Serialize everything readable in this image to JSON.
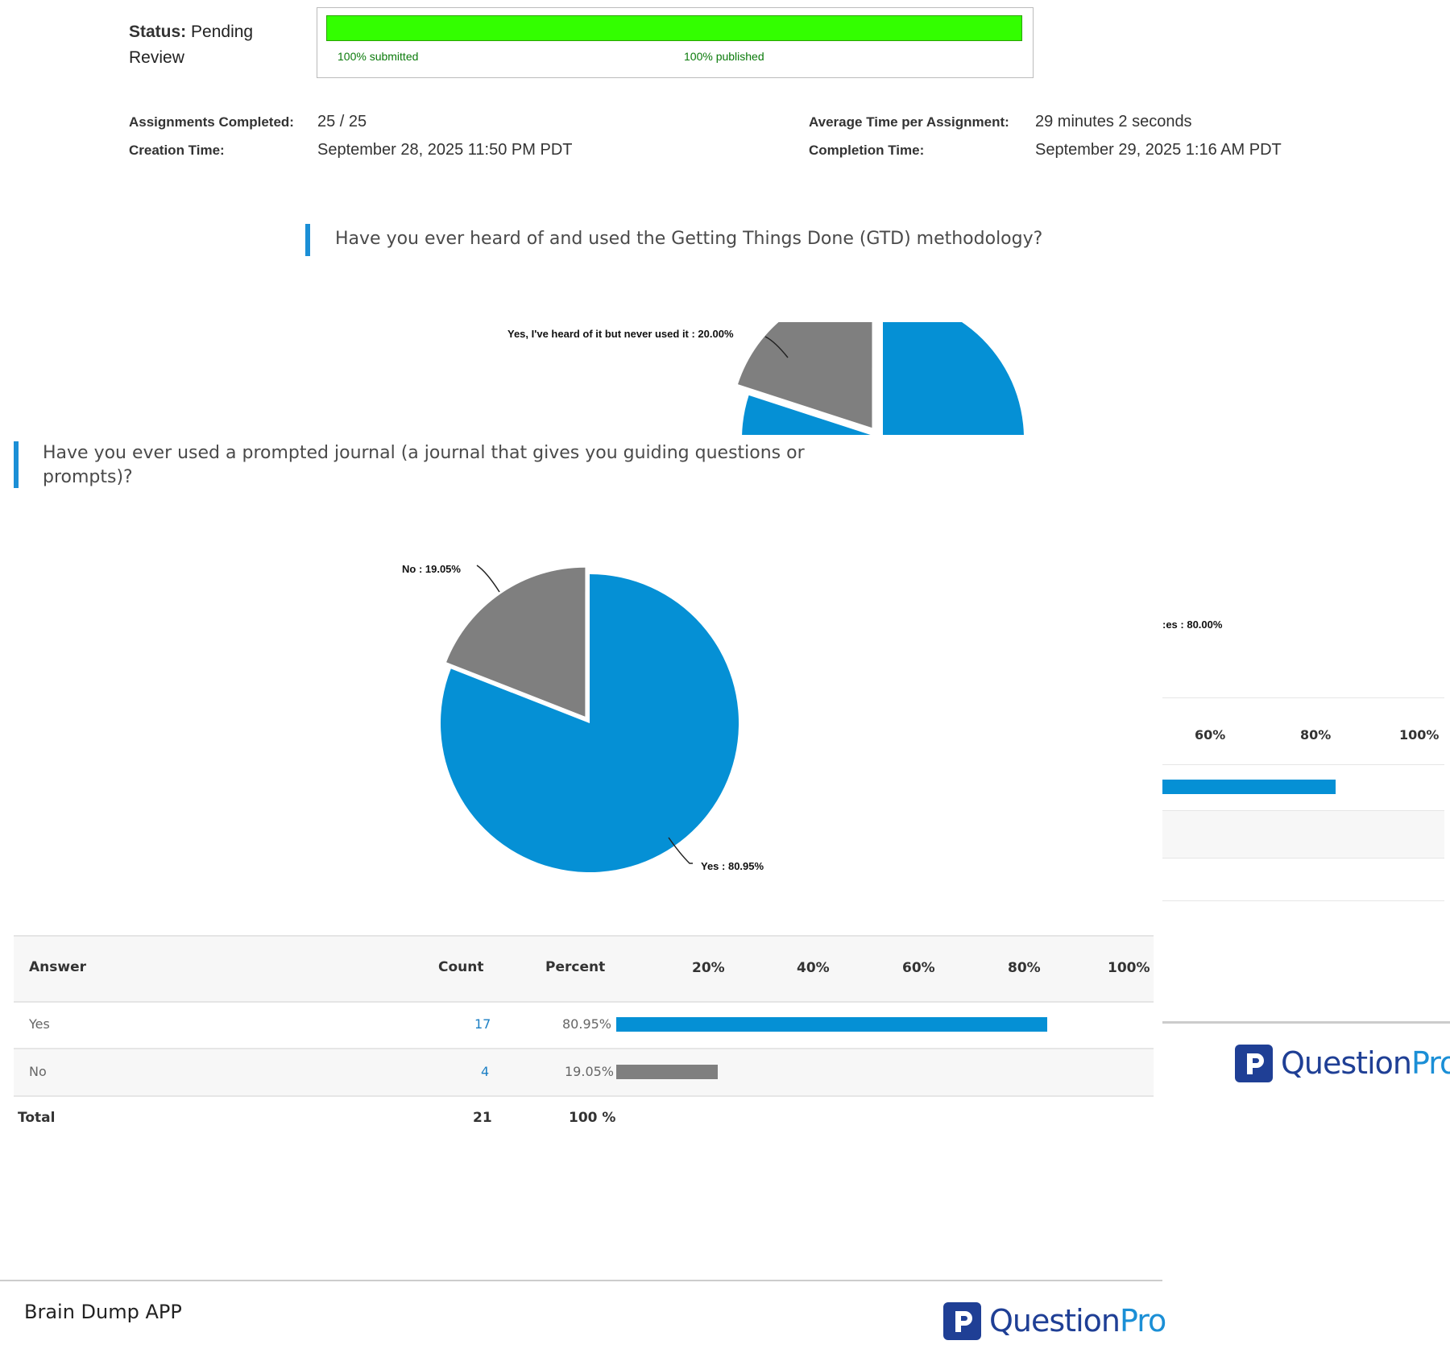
{
  "status": {
    "key": "Status:",
    "value_line1": "Pending",
    "value_line2": "Review"
  },
  "progress": {
    "submitted": "100% submitted",
    "published": "100% published",
    "submitted_fraction": 1.0,
    "published_fraction": 1.0,
    "color": "#33ff00"
  },
  "meta": {
    "assignments_completed_label": "Assignments Completed:",
    "assignments_completed_value": "25 / 25",
    "creation_time_label": "Creation Time:",
    "creation_time_value": "September 28, 2025 11:50 PM PDT",
    "avg_time_label": "Average Time per Assignment:",
    "avg_time_value": "29 minutes 2 seconds",
    "completion_time_label": "Completion Time:",
    "completion_time_value": "September 29, 2025  1:16 AM PDT"
  },
  "question1": {
    "text": "Have you ever heard of and used the Getting Things Done (GTD) methodology?",
    "slice_label": "Yes, I've heard of it but never used it : 20.00%"
  },
  "question2": {
    "text_line1": "Have you ever used a prompted journal (a journal that gives you guiding questions or",
    "text_line2": "prompts)?",
    "no_label": "No : 19.05%",
    "yes_label": "Yes : 80.95%"
  },
  "behind_panel": {
    "slice_label": ":es : 80.00%",
    "ticks": [
      "60%",
      "80%",
      "100%"
    ],
    "bar_value": 80.0
  },
  "table": {
    "headers": {
      "answer": "Answer",
      "count": "Count",
      "percent": "Percent"
    },
    "ticks": [
      "20%",
      "40%",
      "60%",
      "80%",
      "100%"
    ],
    "rows": [
      {
        "answer": "Yes",
        "count": "17",
        "percent": "80.95%",
        "value": 80.95
      },
      {
        "answer": "No",
        "count": "4",
        "percent": "19.05%",
        "value": 19.05
      }
    ],
    "total": {
      "label": "Total",
      "count": "21",
      "percent": "100 %"
    }
  },
  "colors": {
    "blue": "#0590d5",
    "gray": "#7f7f7f",
    "accent": "#1b8fd6",
    "brand": "#1f3f95"
  },
  "logo": {
    "question": "Question",
    "pro": "Pro",
    "icon": "questionpro-p-icon"
  },
  "footer": {
    "title": "Brain Dump APP"
  },
  "chart_data": [
    {
      "type": "pie",
      "title": "Have you ever heard of and used the Getting Things Done (GTD) methodology?",
      "categories": [
        "Yes, I've heard of it but never used it"
      ],
      "values": [
        20.0
      ]
    },
    {
      "type": "pie",
      "title": "Have you ever used a prompted journal (a journal that gives you guiding questions or prompts)?",
      "categories": [
        "Yes",
        "No"
      ],
      "values": [
        80.95,
        19.05
      ]
    },
    {
      "type": "bar",
      "categories": [
        "Yes",
        "No"
      ],
      "values": [
        80.95,
        19.05
      ],
      "xlim": [
        0,
        100
      ]
    }
  ]
}
